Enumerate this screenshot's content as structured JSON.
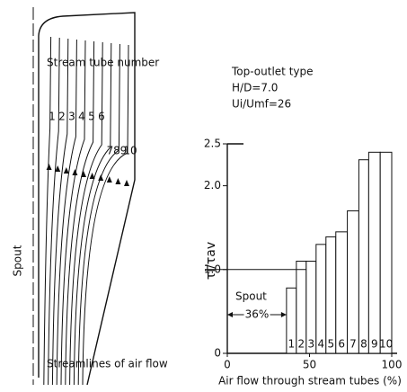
{
  "chart_data": {
    "type": "histogram",
    "title": "Top-outlet type",
    "subtitle": [
      "H/D=7.0",
      "Ui/Umf=26"
    ],
    "xlabel": "Air flow through stream tubes (%)",
    "ylabel": "τi/τav",
    "categories": [
      "1",
      "2",
      "3",
      "4",
      "5",
      "6",
      "7",
      "8",
      "9",
      "10"
    ],
    "bins": [
      36,
      42,
      48,
      54,
      60,
      66,
      73,
      80,
      86,
      93,
      100
    ],
    "values": [
      0.78,
      1.1,
      1.1,
      1.3,
      1.39,
      1.45,
      1.7,
      2.31,
      2.4,
      2.4
    ],
    "color": "#ffffff",
    "reference_line": {
      "value": 1,
      "label": "1.0"
    },
    "annotation": {
      "text": "Spout",
      "span": "36%"
    },
    "xlim": [
      0,
      100
    ],
    "xticks": [
      0,
      50,
      100
    ],
    "ylim": [
      0,
      2.5
    ],
    "yticks": [
      0,
      {
        "value": 1,
        "label": "1.0"
      },
      {
        "value": 2,
        "label": "2.0"
      },
      2.5
    ]
  },
  "diagram": {
    "stream_tube_label": "Stream tube number",
    "tube_numbers": [
      "1",
      "2",
      "3",
      "4",
      "5",
      "6",
      "7",
      "8",
      "9",
      "10"
    ],
    "spout_label": "Spout",
    "caption": "Streamlines of air flow"
  }
}
